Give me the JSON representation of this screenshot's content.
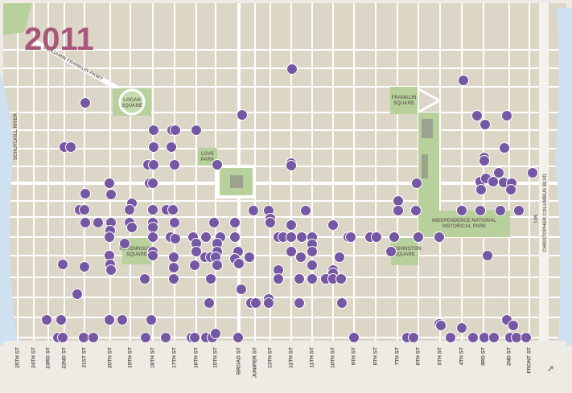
{
  "title": "2011",
  "labels": {
    "parkway": "BENJAMIN FRANKLIN PKWY",
    "logan1": "LOGAN",
    "logan2": "SQUARE",
    "franklin1": "FRANKLIN",
    "franklin2": "SQUARE",
    "love1": "LOVE",
    "love2": "PARK",
    "ritten1": "RITTENHOUSE",
    "ritten2": "SQUARE",
    "wash1": "WASHINGTON",
    "wash2": "SQUARE",
    "indep1": "INDEPENDENCE NATIONAL",
    "indep2": "HISTORICAL PARK",
    "river": "SCHUYLKILL RIVER",
    "blvd": "CHRISTOPHER COLUMBUS BLVD",
    "i95": "I-95"
  },
  "streets": [
    "25TH ST",
    "24TH ST",
    "23RD ST",
    "22ND ST",
    "21ST ST",
    "20TH ST",
    "19TH ST",
    "18TH ST",
    "17TH ST",
    "16TH ST",
    "15TH ST",
    "BROAD ST",
    "JUNIPER ST",
    "13TH ST",
    "12TH ST",
    "11TH ST",
    "10TH ST",
    "9TH ST",
    "8TH ST",
    "7TH ST",
    "6TH ST",
    "5TH ST",
    "4TH ST",
    "3RD ST",
    "2ND ST",
    "FRONT ST"
  ]
}
